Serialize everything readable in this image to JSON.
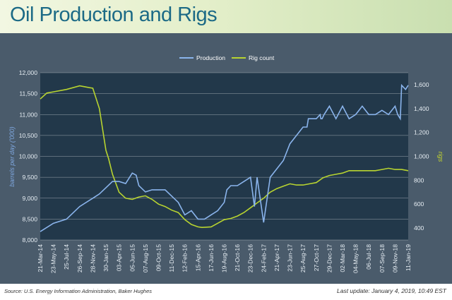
{
  "header": {
    "title": "Oil Production and Rigs"
  },
  "footer": {
    "source": "Source: U.S. Energy Information Administration, Baker Hughes",
    "last_update": "Last update: January 4, 2019, 10:49 EST"
  },
  "colors": {
    "production": "#8ab4ec",
    "rig_count": "#b8d430",
    "plot_bg": "#22384a",
    "panel_bg": "#4a5b6b",
    "title": "#1c6a86",
    "left_axis_label": "#7fa8e0",
    "right_axis_label": "#c5d62e"
  },
  "chart_data": {
    "type": "line",
    "title": "Oil Production and Rigs",
    "x_tick_labels": [
      "21-Mar-14",
      "23-May-14",
      "25-Jul-14",
      "26-Sep-14",
      "28-Nov-14",
      "30-Jan-15",
      "03-Apr-15",
      "05-Jun-15",
      "07-Aug-15",
      "09-Oct-15",
      "11-Dec-15",
      "12-Feb-16",
      "15-Apr-16",
      "17-Jun-16",
      "19-Aug-16",
      "21-Oct-16",
      "23-Dec-16",
      "24-Feb-17",
      "21-Apr-17",
      "23-Jun-17",
      "25-Aug-17",
      "27-Oct-17",
      "29-Dec-17",
      "02-Mar-18",
      "04-May-18",
      "06-Jul-18",
      "07-Sep-18",
      "09-Nov-18",
      "11-Jan-19"
    ],
    "y_left": {
      "label": "barrels per day ('000)",
      "min": 8000,
      "max": 12000,
      "ticks": [
        8000,
        8500,
        9000,
        9500,
        10000,
        10500,
        11000,
        11500,
        12000
      ]
    },
    "y_right": {
      "label": "rigs",
      "min": 300,
      "max": 1700,
      "ticks": [
        400,
        600,
        800,
        1000,
        1200,
        1400,
        1600
      ]
    },
    "grid": true,
    "legend": {
      "position": "top",
      "entries": [
        "Production",
        "Rig count"
      ]
    },
    "series": [
      {
        "name": "Production",
        "axis": "left",
        "x": [
          0,
          1,
          2,
          3,
          4,
          4.5,
          5,
          5.5,
          6,
          6.5,
          7,
          7.3,
          7.5,
          8,
          8.5,
          9,
          9.5,
          10,
          10.5,
          11,
          11.5,
          12,
          12.5,
          13,
          13.5,
          14,
          14.2,
          14.5,
          15,
          15.5,
          16,
          16.3,
          16.5,
          17,
          17.5,
          18,
          18.5,
          19,
          19.5,
          20,
          20.3,
          20.4,
          20.5,
          21,
          21.3,
          21.35,
          21.45,
          21.6,
          22,
          22.5,
          23,
          23.5,
          24,
          24.5,
          25,
          25.5,
          26,
          26.5,
          27,
          27.2,
          27.4,
          27.5,
          27.8,
          28
        ],
        "y": [
          8200,
          8400,
          8500,
          8800,
          9000,
          9100,
          9250,
          9400,
          9400,
          9350,
          9600,
          9550,
          9300,
          9150,
          9200,
          9200,
          9200,
          9050,
          8900,
          8600,
          8700,
          8500,
          8500,
          8600,
          8700,
          8900,
          9200,
          9300,
          9300,
          9400,
          9500,
          8800,
          9500,
          8420,
          9500,
          9700,
          9900,
          10300,
          10500,
          10700,
          10700,
          10900,
          10900,
          10900,
          11000,
          10900,
          10900,
          11000,
          11200,
          10900,
          11200,
          10900,
          11000,
          11200,
          11000,
          11000,
          11100,
          11000,
          11200,
          11000,
          10900,
          11700,
          11600,
          11700
        ]
      },
      {
        "name": "Rig count",
        "axis": "right",
        "x": [
          0,
          0.5,
          1,
          2,
          3,
          3.5,
          4,
          4.5,
          5,
          5.2,
          5.5,
          6,
          6.5,
          7,
          7.5,
          8,
          8.5,
          9,
          9.5,
          10,
          10.5,
          11,
          11.5,
          12,
          12.3,
          13,
          13.5,
          14,
          14.5,
          15,
          15.5,
          16,
          16.5,
          17,
          17.5,
          18,
          18.5,
          19,
          19.5,
          20,
          20.5,
          21,
          21.5,
          22,
          22.5,
          23,
          23.5,
          24,
          24.5,
          25,
          25.5,
          26,
          26.5,
          27,
          27.5,
          28
        ],
        "y": [
          1480,
          1530,
          1540,
          1560,
          1590,
          1580,
          1570,
          1400,
          1050,
          980,
          850,
          700,
          650,
          640,
          660,
          670,
          640,
          600,
          580,
          550,
          530,
          470,
          430,
          410,
          405,
          410,
          440,
          470,
          480,
          500,
          530,
          570,
          610,
          650,
          700,
          730,
          750,
          770,
          760,
          760,
          770,
          780,
          820,
          840,
          850,
          860,
          880,
          880,
          880,
          880,
          880,
          890,
          900,
          890,
          890,
          880
        ]
      }
    ]
  }
}
